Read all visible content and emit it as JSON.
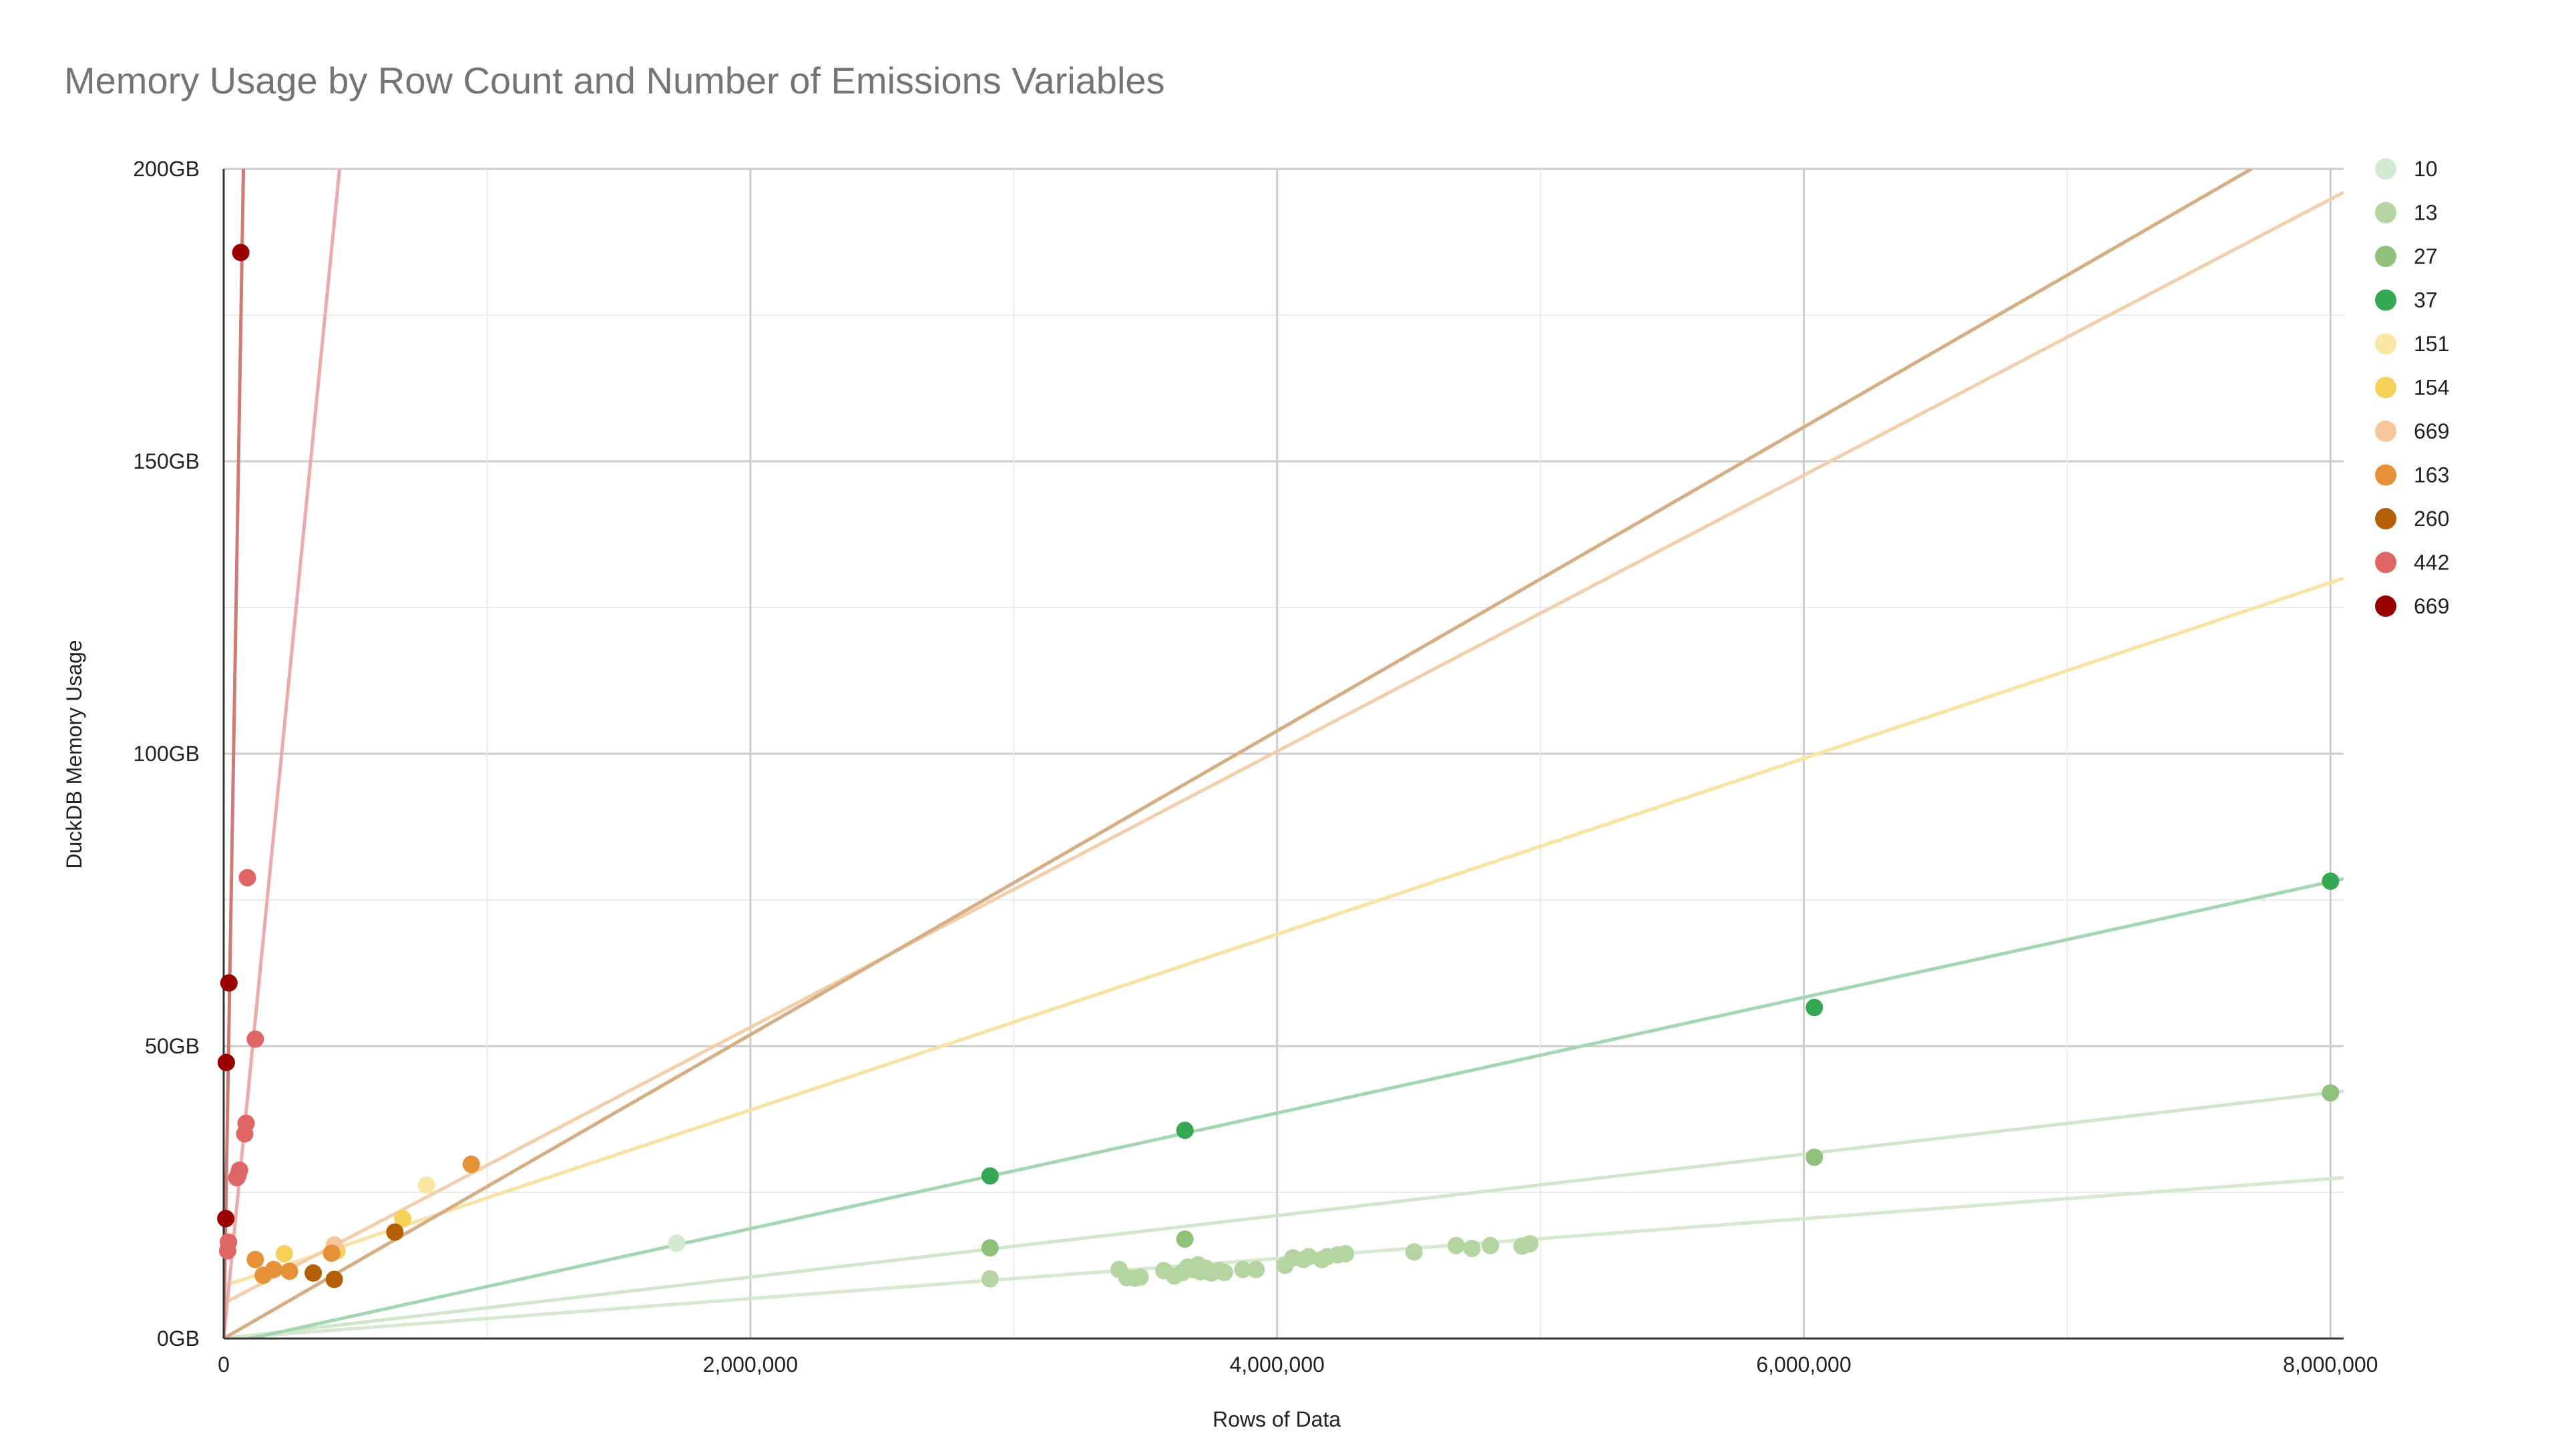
{
  "chart_data": {
    "type": "scatter",
    "title": "Memory Usage by Row Count and Number of Emissions Variables",
    "xlabel": "Rows of Data",
    "ylabel": "DuckDB Memory Usage",
    "xlim": [
      0,
      8050000
    ],
    "ylim": [
      0,
      200
    ],
    "x_ticks": [
      0,
      2000000,
      4000000,
      6000000,
      8000000
    ],
    "x_tick_labels": [
      "0",
      "2,000,000",
      "4,000,000",
      "6,000,000",
      "8,000,000"
    ],
    "y_ticks": [
      0,
      50,
      100,
      150,
      200
    ],
    "y_tick_labels": [
      "0GB",
      "50GB",
      "100GB",
      "150GB",
      "200GB"
    ],
    "grid": true,
    "legend_position": "right",
    "trendlines": "linear",
    "series": [
      {
        "name": "10",
        "color": "#d2e9d2",
        "trend_color": "#dcecd9",
        "points": [
          [
            1720000,
            16.3
          ]
        ],
        "trend": [
          0,
          0,
          8050000,
          27.5
        ]
      },
      {
        "name": "13",
        "color": "#b4d5a1",
        "trend_color": "#d8e8cf",
        "points": [
          [
            2910000,
            10.2
          ],
          [
            3400000,
            11.8
          ],
          [
            3430000,
            10.4
          ],
          [
            3460000,
            10.3
          ],
          [
            3480000,
            10.5
          ],
          [
            3570000,
            11.6
          ],
          [
            3610000,
            10.7
          ],
          [
            3640000,
            11.3
          ],
          [
            3660000,
            12.2
          ],
          [
            3680000,
            11.8
          ],
          [
            3700000,
            12.6
          ],
          [
            3710000,
            11.4
          ],
          [
            3730000,
            12.0
          ],
          [
            3750000,
            11.2
          ],
          [
            3780000,
            11.6
          ],
          [
            3800000,
            11.3
          ],
          [
            3870000,
            11.8
          ],
          [
            3920000,
            11.8
          ],
          [
            4030000,
            12.5
          ],
          [
            4060000,
            13.8
          ],
          [
            4100000,
            13.5
          ],
          [
            4120000,
            14.0
          ],
          [
            4170000,
            13.5
          ],
          [
            4190000,
            14.0
          ],
          [
            4230000,
            14.3
          ],
          [
            4260000,
            14.5
          ],
          [
            4520000,
            14.8
          ],
          [
            4680000,
            15.9
          ],
          [
            4740000,
            15.4
          ],
          [
            4810000,
            15.9
          ],
          [
            4930000,
            15.8
          ],
          [
            4960000,
            16.2
          ]
        ],
        "trend": [
          0,
          0,
          8050000,
          27.5
        ]
      },
      {
        "name": "27",
        "color": "#8fc17a",
        "trend_color": "#d2e6cb",
        "points": [
          [
            2910000,
            15.5
          ],
          [
            3650000,
            17.0
          ],
          [
            6040000,
            31.0
          ],
          [
            8000000,
            42.0
          ]
        ],
        "trend": [
          0,
          0,
          8050000,
          42.3
        ]
      },
      {
        "name": "37",
        "color": "#34a853",
        "trend_color": "#a4d6b2",
        "points": [
          [
            2910000,
            27.8
          ],
          [
            3650000,
            35.6
          ],
          [
            6040000,
            56.6
          ],
          [
            8000000,
            78.2
          ]
        ],
        "trend": [
          0,
          -1,
          8050000,
          78.6
        ]
      },
      {
        "name": "151",
        "color": "#fbe6a4",
        "trend_color": "#fbebb8",
        "points": [
          [
            770000,
            26.2
          ]
        ],
        "trend": [
          0,
          9,
          8050000,
          130
        ]
      },
      {
        "name": "154",
        "color": "#f6d15a",
        "trend_color": "#f9e3a4",
        "points": [
          [
            230000,
            14.5
          ],
          [
            430000,
            15.0
          ],
          [
            680000,
            20.5
          ]
        ],
        "trend": [
          0,
          9,
          8050000,
          130
        ]
      },
      {
        "name": "669",
        "color": "#f7c79b",
        "trend_color": "#f3cfa9",
        "points": [
          [
            420000,
            16.0
          ]
        ],
        "trend": [
          0,
          6,
          8050000,
          196
        ]
      },
      {
        "name": "163",
        "color": "#e69138",
        "trend_color": "#e4b68e",
        "points": [
          [
            120000,
            13.5
          ],
          [
            150000,
            10.8
          ],
          [
            190000,
            11.8
          ],
          [
            250000,
            11.5
          ],
          [
            410000,
            14.6
          ],
          [
            940000,
            29.8
          ]
        ],
        "trend": [
          0,
          0,
          7700000,
          200
        ]
      },
      {
        "name": "260",
        "color": "#b45f06",
        "trend_color": "#d7ad85",
        "points": [
          [
            340000,
            11.2
          ],
          [
            420000,
            10.1
          ],
          [
            650000,
            18.2
          ]
        ],
        "trend": [
          0,
          0,
          7700000,
          200
        ]
      },
      {
        "name": "442",
        "color": "#e06666",
        "trend_color": "#edaaaa",
        "points": [
          [
            15000,
            15.0
          ],
          [
            18000,
            16.5
          ],
          [
            50000,
            27.5
          ],
          [
            55000,
            28.0
          ],
          [
            60000,
            28.8
          ],
          [
            80000,
            35.0
          ],
          [
            85000,
            36.8
          ],
          [
            90000,
            78.8
          ],
          [
            120000,
            51.2
          ]
        ],
        "trend": [
          0,
          0,
          440000,
          200
        ]
      },
      {
        "name": "669",
        "color": "#990000",
        "trend_color": "#d07a75",
        "points": [
          [
            8000,
            20.5
          ],
          [
            10000,
            47.2
          ],
          [
            20000,
            60.8
          ],
          [
            65000,
            185.7
          ]
        ],
        "trend": [
          0,
          0,
          75000,
          200
        ]
      }
    ]
  }
}
